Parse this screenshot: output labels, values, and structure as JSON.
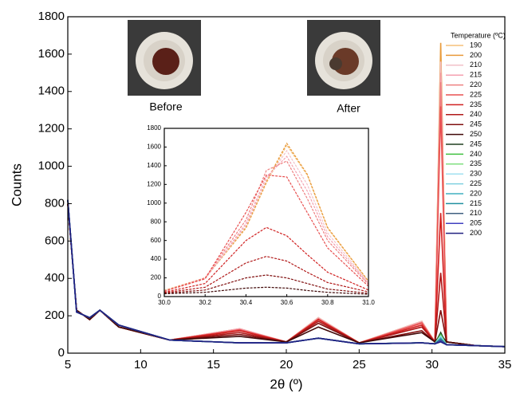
{
  "photos": [
    "Before",
    "After"
  ],
  "chart_data": [
    {
      "type": "line",
      "xlabel": "2θ (º)",
      "ylabel": "Counts",
      "legend_title": "Temperature (ºC)",
      "legend": "right",
      "xlim": [
        5,
        35
      ],
      "xticks": [
        5,
        10,
        15,
        20,
        25,
        30,
        35
      ],
      "ylim": [
        0,
        1800
      ],
      "yticks": [
        0,
        200,
        400,
        600,
        800,
        1000,
        1200,
        1400,
        1600,
        1800
      ],
      "x": [
        5,
        5.6,
        6.5,
        7.2,
        8.5,
        12,
        16.8,
        20,
        22.2,
        25,
        29.3,
        30.2,
        30.6,
        31,
        33,
        35
      ],
      "series": [
        {
          "name": "190",
          "color": "#f5c07a",
          "values": [
            800,
            230,
            180,
            230,
            140,
            70,
            130,
            60,
            190,
            55,
            170,
            60,
            1620,
            60,
            40,
            35
          ]
        },
        {
          "name": "200",
          "color": "#e89a3a",
          "values": [
            800,
            230,
            180,
            230,
            140,
            70,
            130,
            60,
            190,
            55,
            170,
            60,
            1660,
            60,
            40,
            35
          ]
        },
        {
          "name": "210",
          "color": "#f2c0c8",
          "values": [
            800,
            230,
            180,
            230,
            140,
            70,
            130,
            60,
            190,
            55,
            170,
            60,
            1560,
            60,
            40,
            35
          ]
        },
        {
          "name": "215",
          "color": "#f4a0b0",
          "values": [
            800,
            230,
            180,
            230,
            140,
            70,
            130,
            60,
            185,
            55,
            165,
            60,
            1500,
            60,
            40,
            35
          ]
        },
        {
          "name": "220",
          "color": "#ee8080",
          "values": [
            800,
            230,
            180,
            230,
            140,
            70,
            125,
            60,
            185,
            55,
            165,
            60,
            1450,
            60,
            40,
            35
          ]
        },
        {
          "name": "225",
          "color": "#e85050",
          "values": [
            800,
            230,
            180,
            230,
            140,
            70,
            125,
            60,
            180,
            55,
            160,
            60,
            1320,
            60,
            40,
            35
          ]
        },
        {
          "name": "235",
          "color": "#d02020",
          "values": [
            800,
            230,
            180,
            230,
            140,
            70,
            120,
            60,
            180,
            55,
            150,
            60,
            750,
            60,
            40,
            35
          ]
        },
        {
          "name": "240",
          "color": "#b01818",
          "values": [
            800,
            230,
            180,
            230,
            140,
            70,
            110,
            60,
            170,
            55,
            140,
            60,
            430,
            60,
            40,
            35
          ]
        },
        {
          "name": "245",
          "color": "#801010",
          "values": [
            800,
            230,
            180,
            230,
            140,
            70,
            100,
            60,
            160,
            55,
            120,
            60,
            230,
            60,
            40,
            35
          ]
        },
        {
          "name": "250",
          "color": "#400808",
          "values": [
            800,
            230,
            180,
            230,
            140,
            70,
            90,
            60,
            140,
            55,
            110,
            60,
            100,
            60,
            40,
            35
          ]
        },
        {
          "name": "245",
          "color": "#204020",
          "values": [
            820,
            220,
            190,
            230,
            150,
            70,
            55,
            55,
            80,
            50,
            55,
            50,
            110,
            45,
            40,
            35
          ]
        },
        {
          "name": "240",
          "color": "#40c040",
          "values": [
            820,
            220,
            190,
            230,
            150,
            70,
            55,
            55,
            80,
            50,
            55,
            50,
            100,
            45,
            40,
            35
          ]
        },
        {
          "name": "235",
          "color": "#80e080",
          "values": [
            820,
            220,
            190,
            230,
            150,
            70,
            55,
            55,
            80,
            50,
            55,
            50,
            95,
            45,
            40,
            35
          ]
        },
        {
          "name": "230",
          "color": "#a0e0f0",
          "values": [
            820,
            220,
            190,
            230,
            150,
            70,
            55,
            55,
            80,
            50,
            55,
            50,
            90,
            45,
            40,
            35
          ]
        },
        {
          "name": "225",
          "color": "#80d0e0",
          "values": [
            820,
            220,
            190,
            230,
            150,
            70,
            55,
            55,
            80,
            50,
            55,
            50,
            85,
            45,
            40,
            35
          ]
        },
        {
          "name": "220",
          "color": "#40b0c0",
          "values": [
            820,
            220,
            190,
            230,
            150,
            70,
            55,
            55,
            80,
            50,
            55,
            50,
            80,
            45,
            40,
            35
          ]
        },
        {
          "name": "215",
          "color": "#2090a0",
          "values": [
            820,
            220,
            190,
            230,
            150,
            70,
            55,
            55,
            80,
            50,
            55,
            50,
            75,
            45,
            40,
            35
          ]
        },
        {
          "name": "210",
          "color": "#406080",
          "values": [
            820,
            220,
            190,
            230,
            150,
            70,
            55,
            55,
            80,
            50,
            55,
            50,
            70,
            45,
            40,
            35
          ]
        },
        {
          "name": "205",
          "color": "#4040c0",
          "values": [
            820,
            220,
            190,
            230,
            150,
            70,
            55,
            55,
            80,
            50,
            55,
            50,
            65,
            45,
            40,
            35
          ]
        },
        {
          "name": "200",
          "color": "#202080",
          "values": [
            820,
            220,
            190,
            230,
            150,
            70,
            55,
            55,
            80,
            50,
            55,
            50,
            60,
            45,
            40,
            35
          ]
        }
      ]
    },
    {
      "type": "line",
      "xlim": [
        30,
        31
      ],
      "ylim": [
        0,
        1800
      ],
      "xticks": [
        {
          "value": 30,
          "label": "30.0"
        },
        30.2,
        30.4,
        30.6,
        30.8,
        {
          "value": 31,
          "label": "31.0"
        }
      ],
      "yticks": [
        0,
        200,
        400,
        600,
        800,
        1000,
        1200,
        1400,
        1600,
        1800
      ],
      "x": [
        30.0,
        30.2,
        30.4,
        30.5,
        30.6,
        30.7,
        30.8,
        31.0
      ],
      "series": [
        {
          "color": "#f5c07a",
          "values": [
            65,
            195,
            730,
            1215,
            1620,
            1300,
            730,
            160
          ]
        },
        {
          "color": "#e89a3a",
          "values": [
            65,
            200,
            740,
            1230,
            1640,
            1310,
            740,
            165
          ]
        },
        {
          "color": "#f2c0c8",
          "values": [
            60,
            190,
            760,
            1250,
            1560,
            1200,
            680,
            150
          ]
        },
        {
          "color": "#f4a0b0",
          "values": [
            60,
            190,
            780,
            1280,
            1500,
            1130,
            640,
            140
          ]
        },
        {
          "color": "#ee8080",
          "values": [
            60,
            200,
            820,
            1350,
            1450,
            1050,
            600,
            130
          ]
        },
        {
          "color": "#e85050",
          "values": [
            55,
            190,
            900,
            1300,
            1280,
            900,
            520,
            110
          ]
        },
        {
          "color": "#d02020",
          "values": [
            45,
            140,
            600,
            740,
            650,
            450,
            260,
            70
          ]
        },
        {
          "color": "#b01818",
          "values": [
            40,
            100,
            360,
            430,
            380,
            260,
            150,
            50
          ]
        },
        {
          "color": "#801010",
          "values": [
            35,
            70,
            200,
            230,
            200,
            140,
            80,
            35
          ]
        },
        {
          "color": "#400808",
          "values": [
            30,
            45,
            90,
            100,
            90,
            65,
            45,
            25
          ]
        }
      ]
    }
  ]
}
